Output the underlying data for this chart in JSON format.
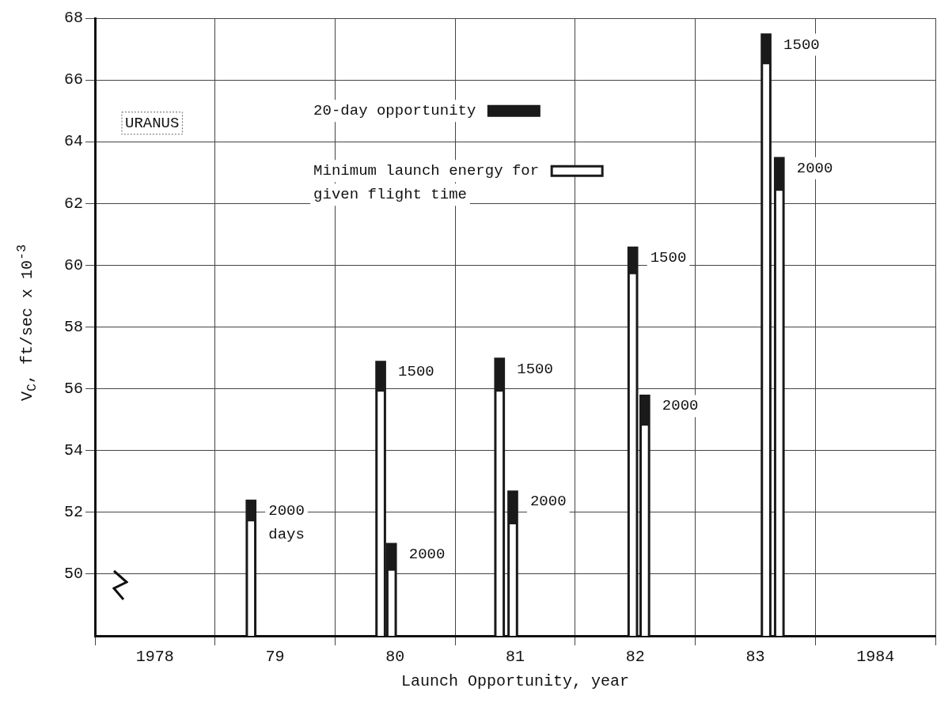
{
  "chart_data": {
    "type": "bar",
    "xlabel": "Launch Opportunity, year",
    "ylabel": "V$_{C}$, ft/sec x 10$^{-3}$",
    "x": [
      1978.8,
      1979.88,
      1979.97,
      1980.87,
      1980.98,
      1981.98,
      1982.08,
      1983.09,
      1983.2
    ],
    "series": [
      {
        "name": "20-day opportunity",
        "color": "#1a1a1a",
        "values": [
          52.4,
          56.9,
          51.0,
          57.0,
          52.7,
          60.6,
          55.8,
          67.5,
          63.5
        ]
      },
      {
        "name": "Minimum launch energy for given flight time",
        "color": "#ffffff",
        "values": [
          51.7,
          55.9,
          50.1,
          55.9,
          51.6,
          59.7,
          54.8,
          66.5,
          62.4
        ]
      }
    ],
    "xlim": [
      1977.5,
      1984.5
    ],
    "xticks": [
      1978,
      {
        "value": 1979,
        "label": "79"
      },
      {
        "value": 1980,
        "label": "80"
      },
      {
        "value": 1981,
        "label": "81"
      },
      {
        "value": 1982,
        "label": "82"
      },
      {
        "value": 1983,
        "label": "83"
      },
      1984
    ],
    "ylim": [
      48,
      68
    ],
    "yticks": [
      50,
      52,
      54,
      56,
      58,
      60,
      62,
      64,
      66,
      68
    ],
    "grid": true,
    "legend": "top",
    "annotations": [
      "URANUS",
      {
        "text": "2000\ndays",
        "x": 1978.8,
        "y": 52.4
      },
      {
        "text": "1500",
        "x": 1979.88,
        "y": 56.9
      },
      {
        "text": "2000",
        "x": 1979.97,
        "y": 51.0
      },
      {
        "text": "1500",
        "x": 1980.87,
        "y": 57.0
      },
      {
        "text": "2000",
        "x": 1980.98,
        "y": 52.7
      },
      {
        "text": "1500",
        "x": 1981.98,
        "y": 60.6
      },
      {
        "text": "2000",
        "x": 1982.08,
        "y": 55.8
      },
      {
        "text": "1500",
        "x": 1983.09,
        "y": 67.5
      },
      {
        "text": "2000",
        "x": 1983.2,
        "y": 63.5
      }
    ]
  }
}
